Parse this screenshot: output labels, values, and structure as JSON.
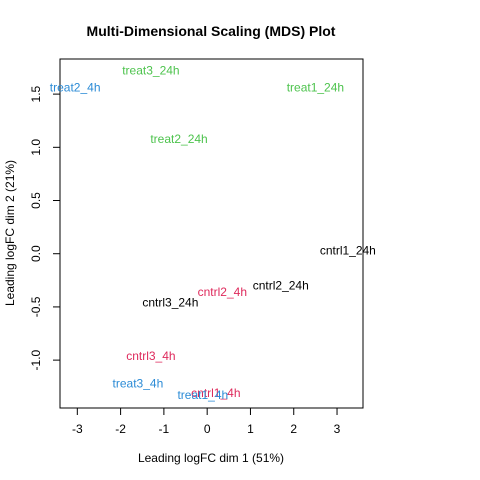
{
  "chart_data": {
    "type": "scatter",
    "title": "Multi-Dimensional Scaling (MDS) Plot",
    "xlabel": "Leading logFC dim 1 (51%)",
    "ylabel": "Leading logFC dim 2 (21%)",
    "xlim": [
      -3.4,
      3.6
    ],
    "ylim": [
      -1.45,
      1.83
    ],
    "xticks": [
      -3,
      -2,
      -1,
      0,
      1,
      2,
      3
    ],
    "yticks": [
      -1.0,
      -0.5,
      0.0,
      0.5,
      1.0,
      1.5
    ],
    "ytick_labels": [
      "-1.0",
      "-0.5",
      "0.0",
      "0.5",
      "1.0",
      "1.5"
    ],
    "grid": false,
    "colors": {
      "green": "#4DC34D",
      "blue": "#2B8BD6",
      "red": "#DE2A5C",
      "black": "#000000"
    },
    "points": [
      {
        "label": "treat2_4h",
        "x": -3.05,
        "y": 1.56,
        "color": "#2B8BD6"
      },
      {
        "label": "treat3_24h",
        "x": -1.3,
        "y": 1.72,
        "color": "#4DC34D"
      },
      {
        "label": "treat1_24h",
        "x": 2.5,
        "y": 1.56,
        "color": "#4DC34D"
      },
      {
        "label": "treat2_24h",
        "x": -0.65,
        "y": 1.08,
        "color": "#4DC34D"
      },
      {
        "label": "cntrl1_24h",
        "x": 3.25,
        "y": 0.03,
        "color": "#000000"
      },
      {
        "label": "cntrl2_24h",
        "x": 1.7,
        "y": -0.3,
        "color": "#000000"
      },
      {
        "label": "cntrl2_4h",
        "x": 0.35,
        "y": -0.36,
        "color": "#DE2A5C"
      },
      {
        "label": "cntrl3_24h",
        "x": -0.85,
        "y": -0.46,
        "color": "#000000"
      },
      {
        "label": "cntrl3_4h",
        "x": -1.3,
        "y": -0.96,
        "color": "#DE2A5C"
      },
      {
        "label": "treat3_4h",
        "x": -1.6,
        "y": -1.22,
        "color": "#2B8BD6"
      },
      {
        "label": "cntrl1_4h",
        "x": 0.2,
        "y": -1.31,
        "color": "#DE2A5C"
      },
      {
        "label": "treat1_4h",
        "x": -0.1,
        "y": -1.33,
        "color": "#2B8BD6"
      }
    ]
  }
}
